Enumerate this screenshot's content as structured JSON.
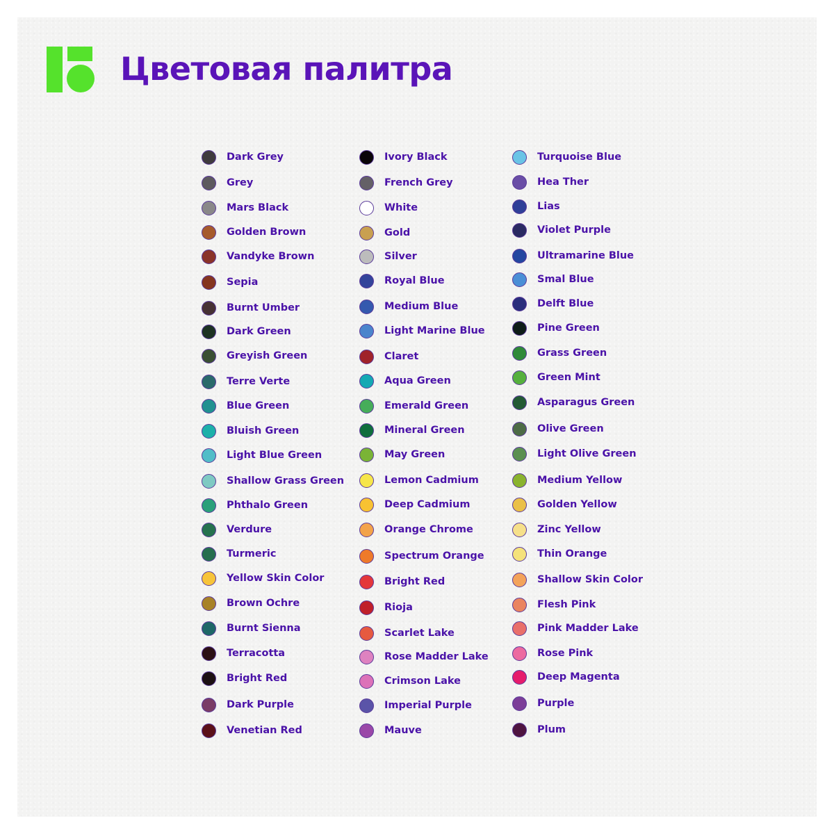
{
  "title": "Цветовая палитра",
  "colors": {
    "accent_logo": "#55e22c",
    "title_text": "#5a14b8",
    "label_text": "#4a12a8"
  },
  "columns": [
    [
      {
        "name": "Dark Grey",
        "color": "#3f3b3e"
      },
      {
        "name": "Grey",
        "color": "#5d5a5f"
      },
      {
        "name": "Mars Black",
        "color": "#8a8889"
      },
      {
        "name": "Golden Brown",
        "color": "#a65a2c"
      },
      {
        "name": "Vandyke Brown",
        "color": "#8a3329"
      },
      {
        "name": "Sepia",
        "color": "#85351f"
      },
      {
        "name": "Burnt Umber",
        "color": "#463134"
      },
      {
        "name": "Dark Green",
        "color": "#1d3223"
      },
      {
        "name": "Greyish Green",
        "color": "#3a4f34"
      },
      {
        "name": "Terre Verte",
        "color": "#2a6a6b"
      },
      {
        "name": "Blue Green",
        "color": "#219190"
      },
      {
        "name": "Bluish Green",
        "color": "#1db0a9"
      },
      {
        "name": "Light Blue Green",
        "color": "#52bdc8"
      },
      {
        "name": "Shallow Grass Green",
        "color": "#7fcac3"
      },
      {
        "name": "Phthalo Green",
        "color": "#2aa07a"
      },
      {
        "name": "Verdure",
        "color": "#25724e"
      },
      {
        "name": "Turmeric",
        "color": "#266e4e"
      },
      {
        "name": "Yellow Skin Color",
        "color": "#f7c43a"
      },
      {
        "name": "Brown Ochre",
        "color": "#a88228"
      },
      {
        "name": "Burnt Sienna",
        "color": "#1e6767"
      },
      {
        "name": "Terracotta",
        "color": "#2c1015"
      },
      {
        "name": "Bright Red",
        "color": "#1c1013"
      },
      {
        "name": "Dark Purple",
        "color": "#7a3c66"
      },
      {
        "name": "Venetian Red",
        "color": "#5b1018"
      }
    ],
    [
      {
        "name": "Ivory Black",
        "color": "#0a0508"
      },
      {
        "name": "French Grey",
        "color": "#646067"
      },
      {
        "name": "White",
        "color": "#ffffff"
      },
      {
        "name": "Gold",
        "color": "#c9a050"
      },
      {
        "name": "Silver",
        "color": "#bcbcbc"
      },
      {
        "name": "Royal Blue",
        "color": "#33449a"
      },
      {
        "name": "Medium Blue",
        "color": "#3559ae"
      },
      {
        "name": "Light Marine Blue",
        "color": "#4b85cc"
      },
      {
        "name": "Claret",
        "color": "#a0232a"
      },
      {
        "name": "Aqua Green",
        "color": "#14a9b3"
      },
      {
        "name": "Emerald Green",
        "color": "#46ad5a"
      },
      {
        "name": "Mineral Green",
        "color": "#0f6e3c"
      },
      {
        "name": "May Green",
        "color": "#7ab436"
      },
      {
        "name": "Lemon Cadmium",
        "color": "#f6e64a"
      },
      {
        "name": "Deep Cadmium",
        "color": "#f8c232"
      },
      {
        "name": "Orange Chrome",
        "color": "#f3a34a"
      },
      {
        "name": "Spectrum Orange",
        "color": "#ee7a2a"
      },
      {
        "name": "Bright Red",
        "color": "#e4373a"
      },
      {
        "name": "Rioja",
        "color": "#c0202a"
      },
      {
        "name": "Scarlet Lake",
        "color": "#e65a40"
      },
      {
        "name": "Rose Madder Lake",
        "color": "#de82c0"
      },
      {
        "name": "Crimson Lake",
        "color": "#dc72b8"
      },
      {
        "name": "Imperial Purple",
        "color": "#5a54a8"
      },
      {
        "name": "Mauve",
        "color": "#9a48a8"
      }
    ],
    [
      {
        "name": "Turquoise Blue",
        "color": "#6ac4e6"
      },
      {
        "name": "Hea Ther",
        "color": "#6a4ea6"
      },
      {
        "name": "Lias",
        "color": "#2f3f98"
      },
      {
        "name": "Violet Purple",
        "color": "#2a2a62"
      },
      {
        "name": "Ultramarine Blue",
        "color": "#2447a0"
      },
      {
        "name": "Smal Blue",
        "color": "#4b8fd6"
      },
      {
        "name": "Delft Blue",
        "color": "#2a2e7c"
      },
      {
        "name": "Pine Green",
        "color": "#0e1c18"
      },
      {
        "name": "Grass Green",
        "color": "#2f8a38"
      },
      {
        "name": "Green Mint",
        "color": "#56b03e"
      },
      {
        "name": "Asparagus Green",
        "color": "#235a34"
      },
      {
        "name": "Olive Green",
        "color": "#4d6b46"
      },
      {
        "name": "Light Olive Green",
        "color": "#5a8f50"
      },
      {
        "name": "Medium Yellow",
        "color": "#8ab32e"
      },
      {
        "name": "Golden Yellow",
        "color": "#eac048"
      },
      {
        "name": "Zinc Yellow",
        "color": "#f6e08a"
      },
      {
        "name": "Thin Orange",
        "color": "#f5e27a"
      },
      {
        "name": "Shallow Skin Color",
        "color": "#f3a35a"
      },
      {
        "name": "Flesh Pink",
        "color": "#ea8460"
      },
      {
        "name": "Pink Madder Lake",
        "color": "#e9706a"
      },
      {
        "name": "Rose Pink",
        "color": "#ec6aa0"
      },
      {
        "name": "Deep Magenta",
        "color": "#e61c6c"
      },
      {
        "name": "Purple",
        "color": "#7c3e98"
      },
      {
        "name": "Plum",
        "color": "#4e1440"
      }
    ]
  ]
}
